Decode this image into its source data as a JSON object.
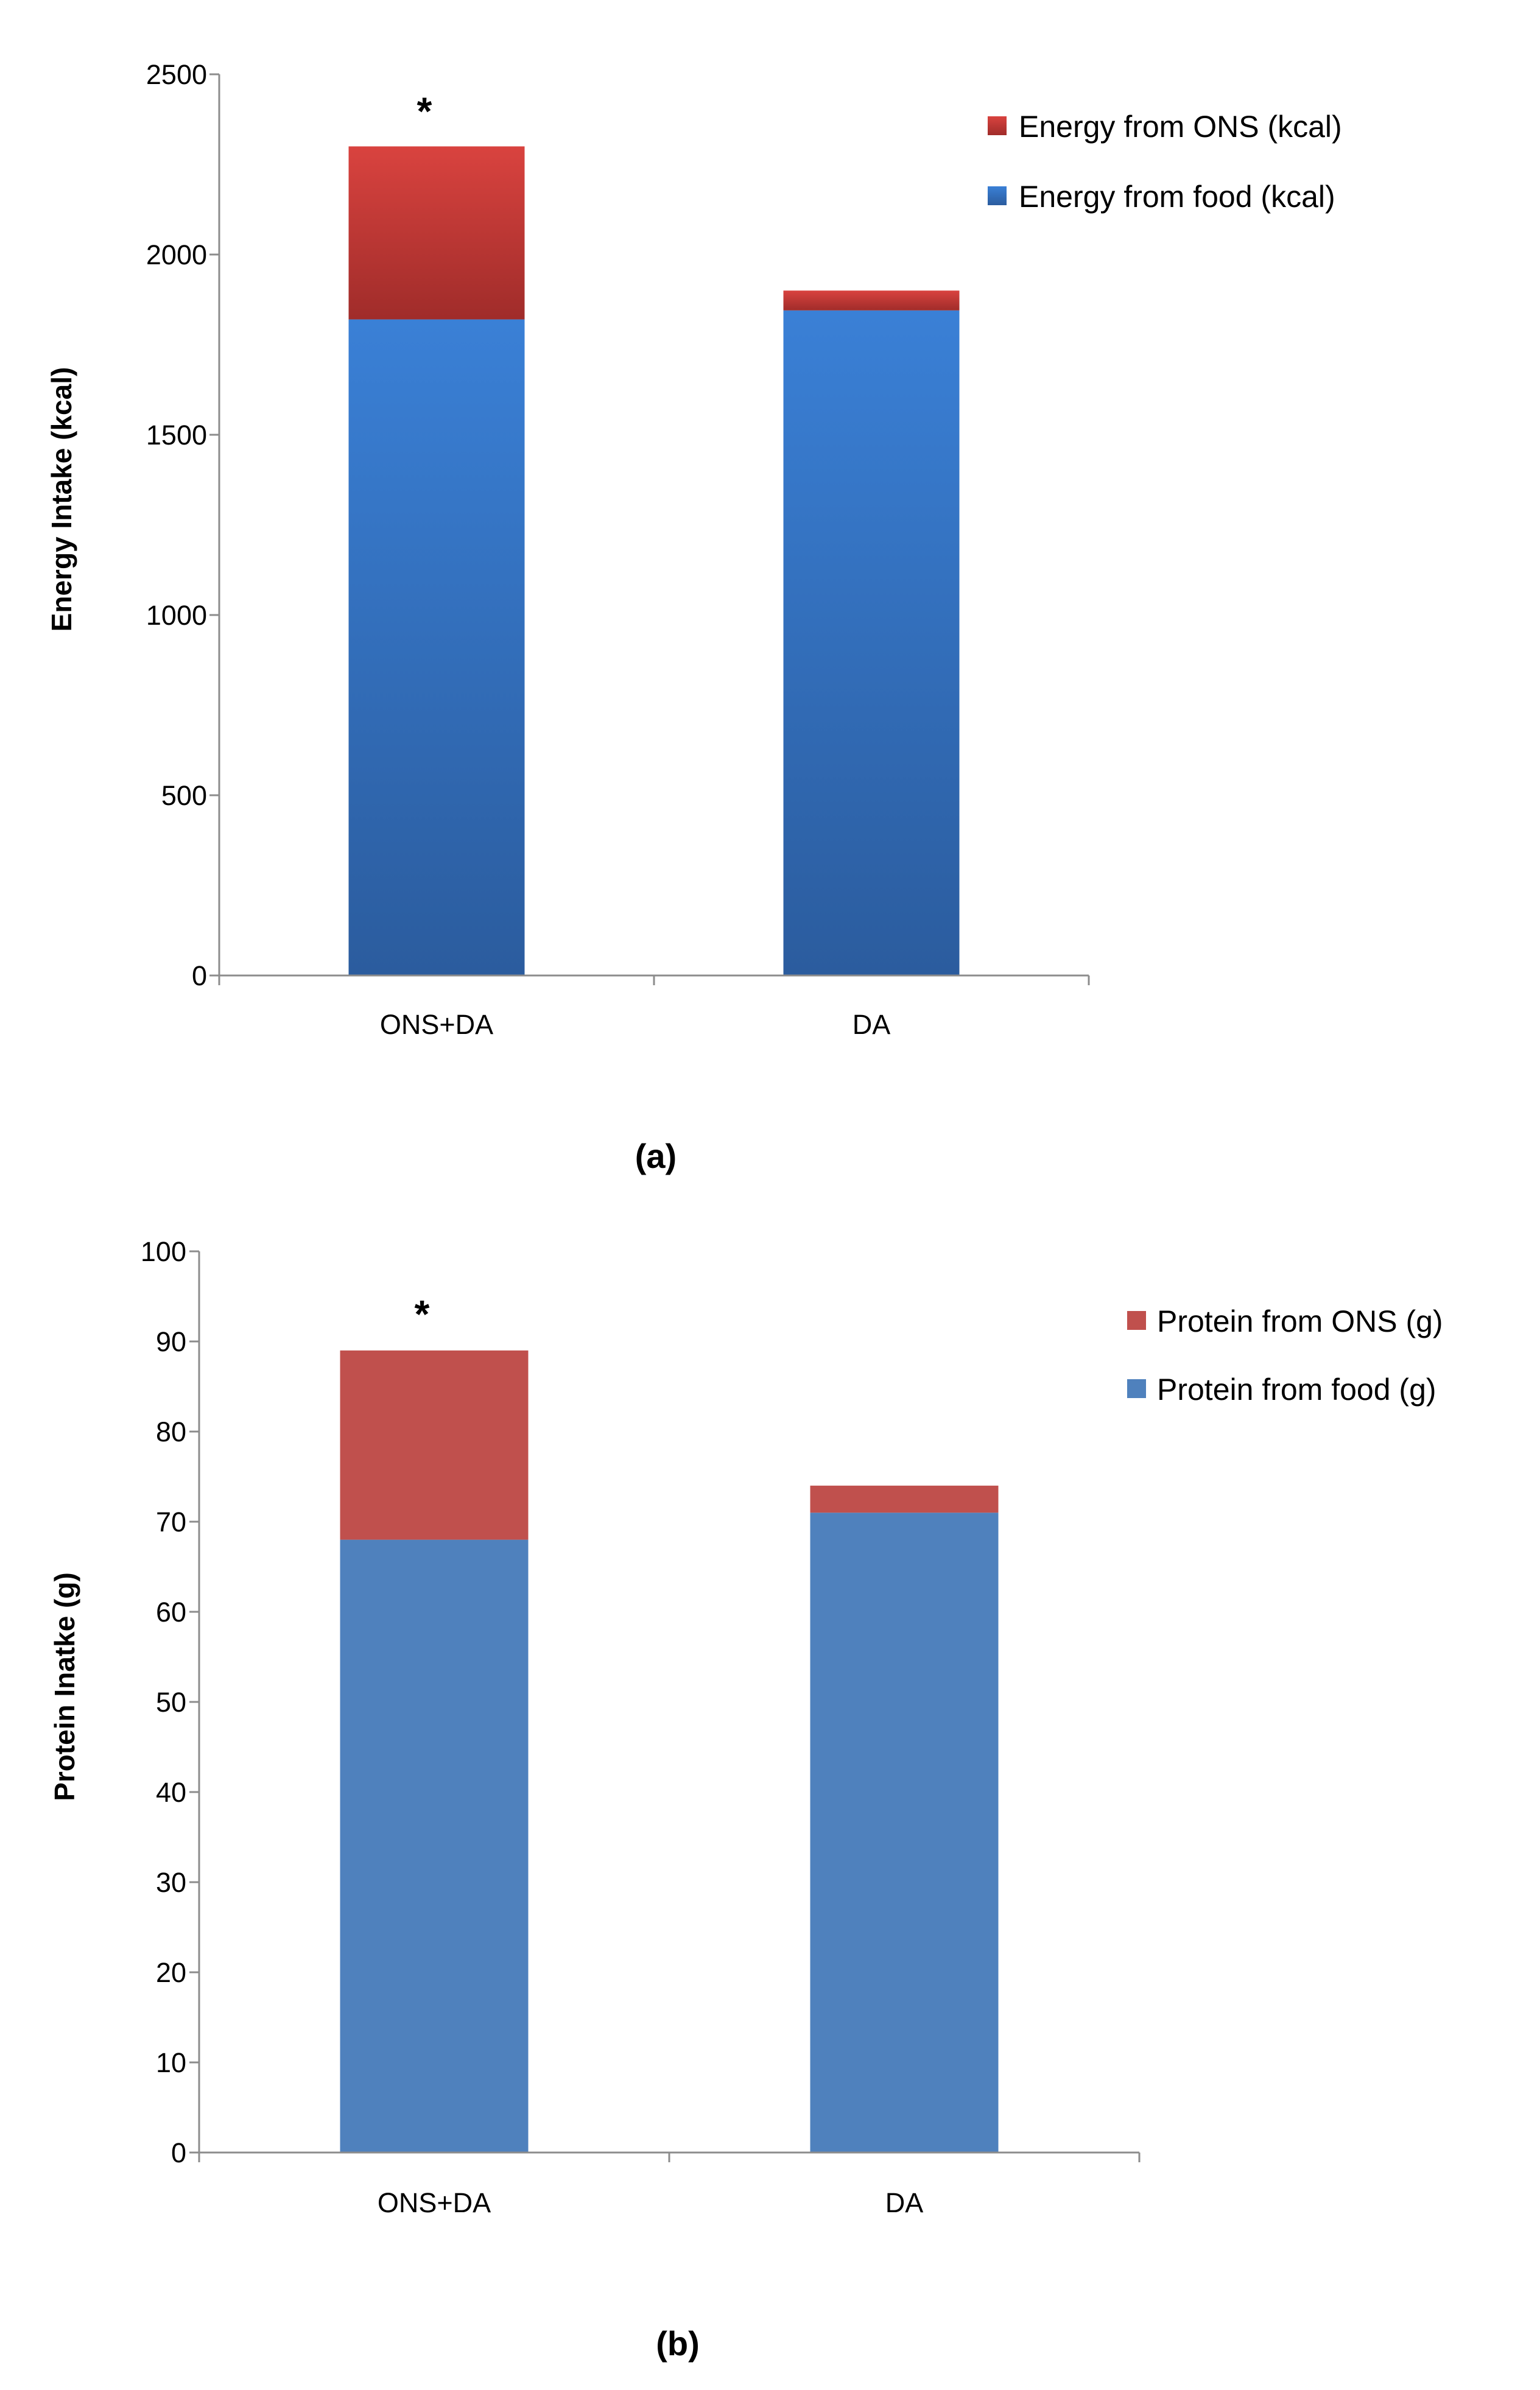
{
  "chart_data": [
    {
      "type": "bar",
      "stacked": true,
      "panel_label": "(a)",
      "categories": [
        "ONS+DA",
        "DA"
      ],
      "series": [
        {
          "name": "Energy from food (kcal)",
          "values": [
            1820,
            1845
          ],
          "color": "#3a78c6"
        },
        {
          "name": "Energy from ONS (kcal)",
          "values": [
            480,
            55
          ],
          "color": "#cf3a37"
        }
      ],
      "ylabel": "Energy Intake (kcal)",
      "xlabel": "",
      "ylim": [
        0,
        2500
      ],
      "yticks": [
        0,
        500,
        1000,
        1500,
        2000,
        2500
      ],
      "annotations": [
        {
          "category": "ONS+DA",
          "text": "*"
        }
      ],
      "legend": [
        "Energy from ONS (kcal)",
        "Energy from food (kcal)"
      ],
      "legend_position": "top-right",
      "grid": false
    },
    {
      "type": "bar",
      "stacked": true,
      "panel_label": "(b)",
      "categories": [
        "ONS+DA",
        "DA"
      ],
      "series": [
        {
          "name": "Protein from food (g)",
          "values": [
            68,
            71
          ],
          "color": "#4f81bd"
        },
        {
          "name": "Protein from ONS (g)",
          "values": [
            21,
            3
          ],
          "color": "#c0504d"
        }
      ],
      "ylabel": "Protein Inatke (g)",
      "xlabel": "",
      "ylim": [
        0,
        100
      ],
      "yticks": [
        0,
        10,
        20,
        30,
        40,
        50,
        60,
        70,
        80,
        90,
        100
      ],
      "annotations": [
        {
          "category": "ONS+DA",
          "text": "*"
        }
      ],
      "legend": [
        "Protein from ONS (g)",
        "Protein from food (g)"
      ],
      "legend_position": "top-right",
      "grid": false
    }
  ]
}
